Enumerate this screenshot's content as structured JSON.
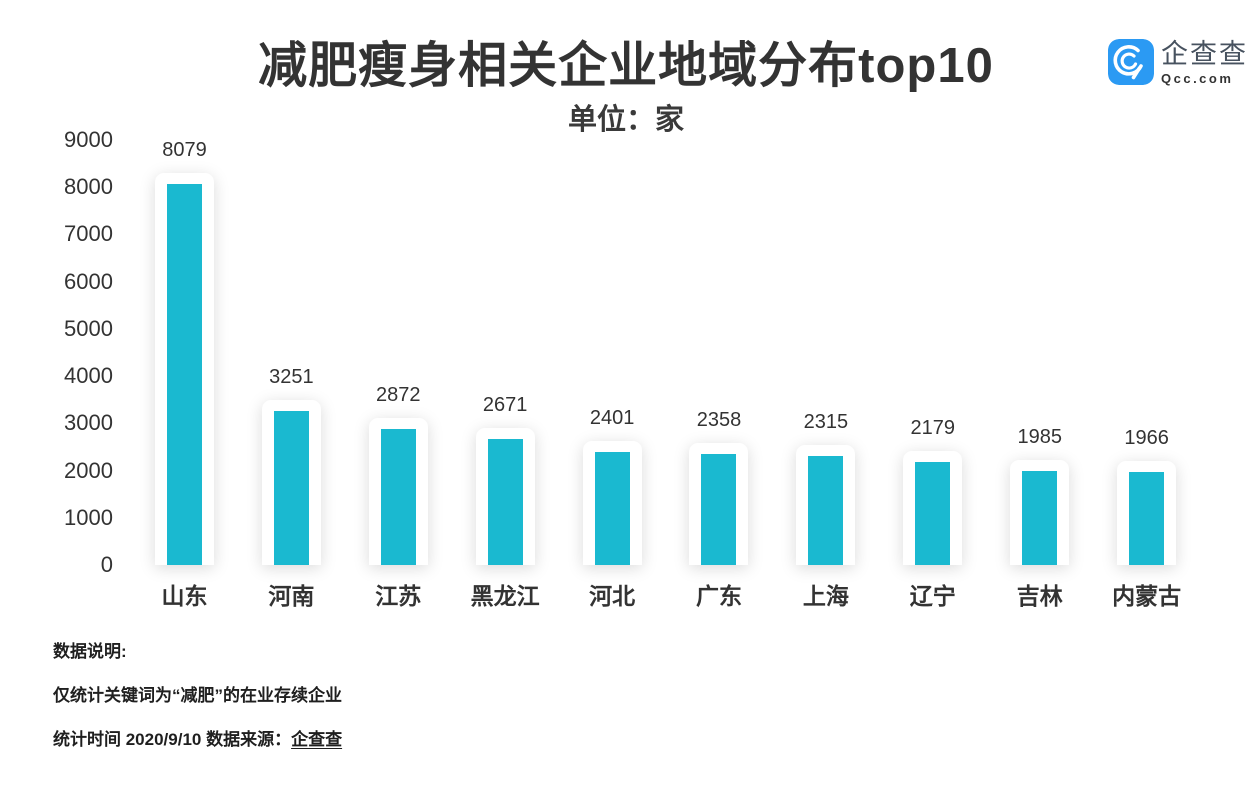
{
  "header": {
    "logo": {
      "brand": "企查查",
      "domain": "Qcc.com",
      "icon_color": "#2b9af3",
      "icon_glyph_color": "#ffffff"
    }
  },
  "chart_data": {
    "type": "bar",
    "title": "减肥瘦身相关企业地域分布top10",
    "unit_label": "单位：家",
    "categories": [
      "山东",
      "河南",
      "江苏",
      "黑龙江",
      "河北",
      "广东",
      "上海",
      "辽宁",
      "吉林",
      "内蒙古"
    ],
    "values": [
      8079,
      3251,
      2872,
      2671,
      2401,
      2358,
      2315,
      2179,
      1985,
      1966
    ],
    "ylim": [
      0,
      9000
    ],
    "ytick_step": 1000,
    "bar_color": "#1ab9d0",
    "grid": false,
    "data_labels": true,
    "legend": "none"
  },
  "footer": {
    "note_title": "数据说明:",
    "note_line1": "仅统计关键词为“减肥”的在业存续企业",
    "note_line2_prefix": "统计时间 2020/9/10   数据来源：",
    "note_line2_source": "企查查"
  }
}
